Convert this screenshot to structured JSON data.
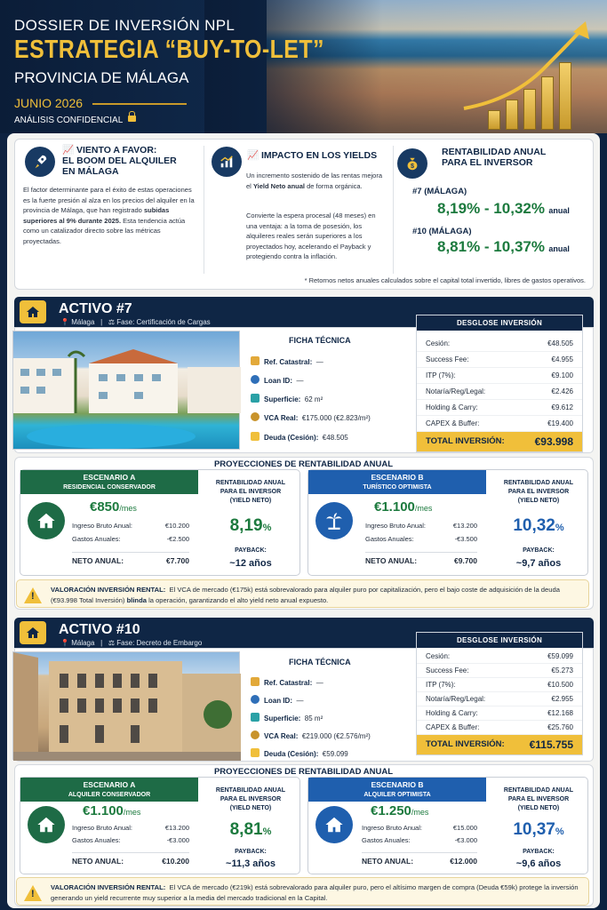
{
  "header": {
    "dossier": "DOSSIER DE INVERSIÓN NPL",
    "strategy": "ESTRATEGIA “BUY-TO-LET”",
    "province": "PROVINCIA DE MÁLAGA",
    "date": "JUNIO 2026",
    "confidential": "ANÁLISIS CONFIDENCIAL"
  },
  "intro": {
    "wind": {
      "title_line1": "VIENTO A FAVOR:",
      "title_line2": "EL BOOM DEL ALQUILER",
      "title_line3": "EN MÁLAGA",
      "body_a": "El factor determinante para el éxito de estas operaciones es la fuerte presión al alza en los precios del alquiler en la provincia de Málaga, que han registrado",
      "body_bold": "subidas superiores al 9% durante 2025.",
      "body_b": "Esta tendencia actúa como un catalizador directo sobre las métricas proyectadas."
    },
    "impact": {
      "title": "IMPACTO EN LOS YIELDS",
      "p1_a": "Un incremento sostenido de las rentas mejora el",
      "p1_bold": "Yield Neto anual",
      "p1_b": "de forma orgánica.",
      "p2": "Convierte la espera procesal (48 meses) en una ventaja: a la toma de posesión, los alquileres reales serán superiores a los proyectados hoy, acelerando el Payback y protegiendo contra la inflación."
    },
    "returns": {
      "title_line1": "RENTABILIDAD ANUAL",
      "title_line2": "PARA EL INVERSOR",
      "a7_label": "#7 (MÁLAGA)",
      "a7_value": "8,19% - 10,32%",
      "a10_label": "#10 (MÁLAGA)",
      "a10_value": "8,81% - 10,37%",
      "unit": "anual"
    },
    "footnote": "* Retornos netos anuales calculados sobre el capital total invertido, libres de gastos operativos."
  },
  "assets": [
    {
      "title": "ACTIVO #7",
      "location": "Málaga",
      "phase": "Fase: Certificación de Cargas",
      "ficha_title": "FICHA TÉCNICA",
      "ficha": [
        {
          "label": "Ref. Catastral:",
          "value": "—"
        },
        {
          "label": "Loan ID:",
          "value": "—"
        },
        {
          "label": "Superficie:",
          "value": "62 m²"
        },
        {
          "label": "VCA Real:",
          "value": "€175.000 (€2.823/m²)"
        },
        {
          "label": "Deuda (Cesión):",
          "value": "€48.505"
        }
      ],
      "breakdown_title": "DESGLOSE INVERSIÓN",
      "breakdown": [
        {
          "label": "Cesión:",
          "value": "€48.505"
        },
        {
          "label": "Success Fee:",
          "value": "€4.955"
        },
        {
          "label": "ITP (7%):",
          "value": "€9.100"
        },
        {
          "label": "Notaría/Reg/Legal:",
          "value": "€2.426"
        },
        {
          "label": "Holding & Carry:",
          "value": "€9.612"
        },
        {
          "label": "CAPEX & Buffer:",
          "value": "€19.400"
        }
      ],
      "total_label": "TOTAL INVERSIÓN:",
      "total_value": "€93.998",
      "projections_title": "PROYECCIONES DE RENTABILIDAD ANUAL",
      "scenarios": [
        {
          "head1": "ESCENARIO A",
          "head2": "RESIDENCIAL CONSERVADOR",
          "price": "€850",
          "per": "/mes",
          "gross_label": "Ingreso Bruto Anual:",
          "gross": "€10.200",
          "exp_label": "Gastos Anuales:",
          "exp": "-€2.500",
          "net_label": "NETO ANUAL:",
          "net": "€7.700",
          "rcap1": "RENTABILIDAD ANUAL",
          "rcap2": "PARA EL INVERSOR",
          "rcap3": "(YIELD NETO)",
          "yield": "8,19",
          "pct": "%",
          "pb_label": "PAYBACK:",
          "pb": "~12 años"
        },
        {
          "head1": "ESCENARIO B",
          "head2": "TURÍSTICO OPTIMISTA",
          "price": "€1.100",
          "per": "/mes",
          "gross_label": "Ingreso Bruto Anual:",
          "gross": "€13.200",
          "exp_label": "Gastos Anuales:",
          "exp": "-€3.500",
          "net_label": "NETO ANUAL:",
          "net": "€9.700",
          "rcap1": "RENTABILIDAD ANUAL",
          "rcap2": "PARA EL INVERSOR",
          "rcap3": "(YIELD NETO)",
          "yield": "10,32",
          "pct": "%",
          "pb_label": "PAYBACK:",
          "pb": "~9,7 años"
        }
      ],
      "warn_bold": "VALORACIÓN INVERSIÓN RENTAL:",
      "warn_a": "El VCA de mercado (€175k) está sobrevalorado para alquiler puro por capitalización, pero el bajo coste de adquisición de la deuda (€93.998 Total Inversión)",
      "warn_b": "blinda",
      "warn_c": "la operación, garantizando el alto yield neto anual expuesto."
    },
    {
      "title": "ACTIVO #10",
      "location": "Málaga",
      "phase": "Fase: Decreto de Embargo",
      "ficha_title": "FICHA TÉCNICA",
      "ficha": [
        {
          "label": "Ref. Catastral:",
          "value": "—"
        },
        {
          "label": "Loan ID:",
          "value": "—"
        },
        {
          "label": "Superficie:",
          "value": "85 m²"
        },
        {
          "label": "VCA Real:",
          "value": "€219.000 (€2.576/m²)"
        },
        {
          "label": "Deuda (Cesión):",
          "value": "€59.099"
        }
      ],
      "breakdown_title": "DESGLOSE INVERSIÓN",
      "breakdown": [
        {
          "label": "Cesión:",
          "value": "€59.099"
        },
        {
          "label": "Success Fee:",
          "value": "€5.273"
        },
        {
          "label": "ITP (7%):",
          "value": "€10.500"
        },
        {
          "label": "Notaría/Reg/Legal:",
          "value": "€2.955"
        },
        {
          "label": "Holding & Carry:",
          "value": "€12.168"
        },
        {
          "label": "CAPEX & Buffer:",
          "value": "€25.760"
        }
      ],
      "total_label": "TOTAL INVERSIÓN:",
      "total_value": "€115.755",
      "projections_title": "PROYECCIONES DE RENTABILIDAD ANUAL",
      "scenarios": [
        {
          "head1": "ESCENARIO A",
          "head2": "ALQUILER CONSERVADOR",
          "price": "€1.100",
          "per": "/mes",
          "gross_label": "Ingreso Bruto Anual:",
          "gross": "€13.200",
          "exp_label": "Gastos Anuales:",
          "exp": "-€3.000",
          "net_label": "NETO ANUAL:",
          "net": "€10.200",
          "rcap1": "RENTABILIDAD ANUAL",
          "rcap2": "PARA EL INVERSOR",
          "rcap3": "(YIELD NETO)",
          "yield": "8,81",
          "pct": "%",
          "pb_label": "PAYBACK:",
          "pb": "~11,3 años"
        },
        {
          "head1": "ESCENARIO B",
          "head2": "ALQUILER OPTIMISTA",
          "price": "€1.250",
          "per": "/mes",
          "gross_label": "Ingreso Bruto Anual:",
          "gross": "€15.000",
          "exp_label": "Gastos Anuales:",
          "exp": "-€3.000",
          "net_label": "NETO ANUAL:",
          "net": "€12.000",
          "rcap1": "RENTABILIDAD ANUAL",
          "rcap2": "PARA EL INVERSOR",
          "rcap3": "(YIELD NETO)",
          "yield": "10,37",
          "pct": "%",
          "pb_label": "PAYBACK:",
          "pb": "~9,6 años"
        }
      ],
      "warn_bold": "VALORACIÓN INVERSIÓN RENTAL:",
      "warn_a": "El VCA de mercado (€219k) está sobrevalorado para alquiler puro, pero el altísimo margen de compra (Deuda €59k) protege la inversión generando un yield recurrente muy superior a la media del mercado tradicional en la Capital.",
      "warn_b": "",
      "warn_c": ""
    }
  ],
  "colors": {
    "navy": "#0f2645",
    "gold": "#f0bf3a",
    "green": "#1c7a3e",
    "blue": "#1f5fae",
    "scenario_a_head": "#1e6b46",
    "scenario_b_head": "#1f5fae"
  },
  "icons": [
    "rocket-icon",
    "growth-chart-icon",
    "money-bag-icon",
    "home-icon",
    "location-pin-icon",
    "scales-icon",
    "key-icon",
    "id-icon",
    "ruler-icon",
    "coin-bag-icon",
    "card-icon",
    "palm-tree-icon",
    "warning-icon",
    "lock-icon"
  ]
}
